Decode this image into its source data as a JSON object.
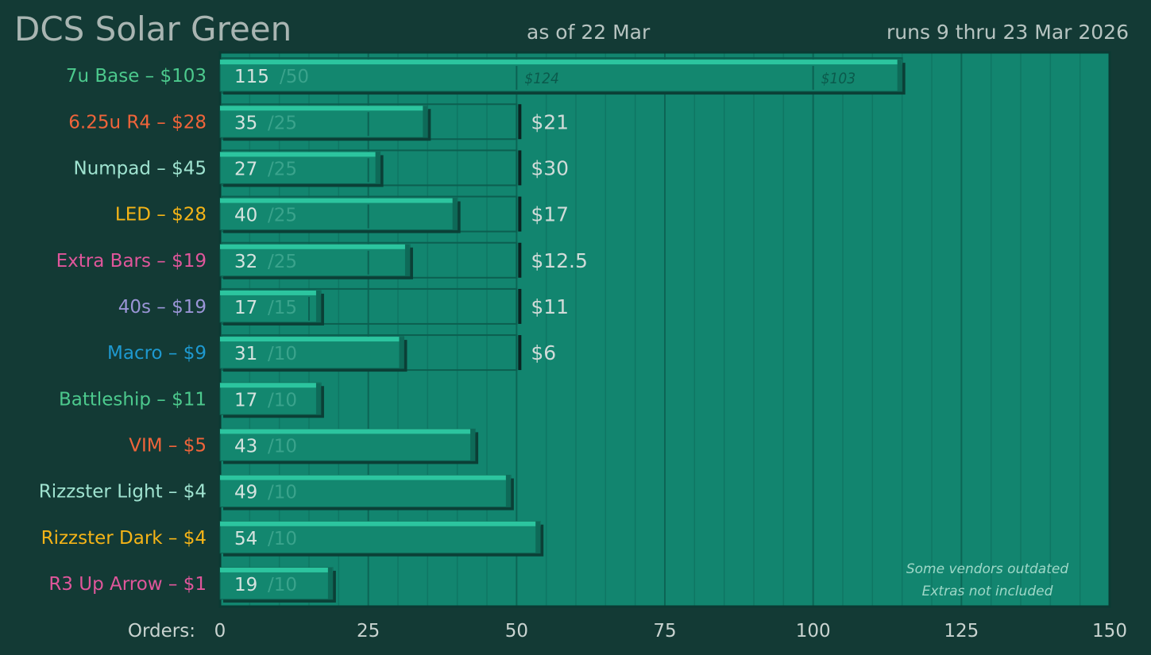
{
  "header": {
    "title": "DCS Solar Green",
    "as_of": "as of 22 Mar",
    "runs": "runs 9 thru 23 Mar 2026"
  },
  "chart_data": {
    "type": "bar",
    "orientation": "horizontal",
    "xlabel": "Orders:",
    "xlim": [
      0,
      150
    ],
    "x_ticks": [
      0,
      25,
      50,
      75,
      100,
      125,
      150
    ],
    "grid": true,
    "categories": [
      {
        "label": "7u Base – $103",
        "color": "#4cc98d",
        "orders": 115,
        "moq": "/50",
        "tier_target": 115,
        "price_tiers": [
          {
            "at": 50,
            "label": "$124"
          },
          {
            "at": 100,
            "label": "$103"
          }
        ]
      },
      {
        "label": "6.25u R4 – $28",
        "color": "#f0643a",
        "orders": 35,
        "moq": "/25",
        "tier_target": 50,
        "next_price": "$21",
        "marks": [
          25
        ]
      },
      {
        "label": "Numpad – $45",
        "color": "#9fe3d0",
        "orders": 27,
        "moq": "/25",
        "tier_target": 50,
        "next_price": "$30",
        "marks": [
          25
        ]
      },
      {
        "label": "LED – $28",
        "color": "#f5b417",
        "orders": 40,
        "moq": "/25",
        "tier_target": 50,
        "next_price": "$17",
        "marks": [
          25
        ]
      },
      {
        "label": "Extra Bars – $19",
        "color": "#e0569b",
        "orders": 32,
        "moq": "/25",
        "tier_target": 50,
        "next_price": "$12.5",
        "marks": [
          25
        ]
      },
      {
        "label": "40s – $19",
        "color": "#9a95d6",
        "orders": 17,
        "moq": "/15",
        "tier_target": 50,
        "next_price": "$11",
        "marks": [
          15
        ]
      },
      {
        "label": "Macro – $9",
        "color": "#1e99d0",
        "orders": 31,
        "moq": "/10",
        "tier_target": 50,
        "next_price": "$6",
        "marks": []
      },
      {
        "label": "Battleship – $11",
        "color": "#4cc98d",
        "orders": 17,
        "moq": "/10"
      },
      {
        "label": "VIM – $5",
        "color": "#f0643a",
        "orders": 43,
        "moq": "/10"
      },
      {
        "label": "Rizzster Light – $4",
        "color": "#9fe3d0",
        "orders": 49,
        "moq": "/10"
      },
      {
        "label": "Rizzster Dark – $4",
        "color": "#f5b417",
        "orders": 54,
        "moq": "/10"
      },
      {
        "label": "R3 Up Arrow – $1",
        "color": "#e0569b",
        "orders": 19,
        "moq": "/10"
      }
    ],
    "notes": [
      "Some vendors outdated",
      "Extras not included"
    ]
  }
}
